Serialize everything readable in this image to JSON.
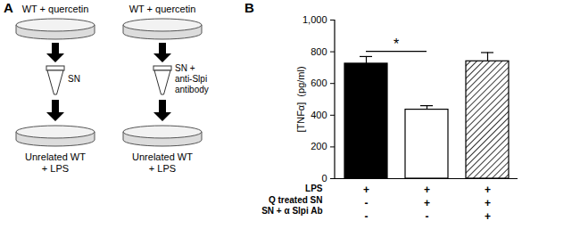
{
  "chart_data": {
    "type": "bar",
    "title": "B",
    "categories": [
      null,
      null,
      null
    ],
    "values": [
      725,
      435,
      740
    ],
    "errors": [
      45,
      25,
      55
    ],
    "colors": [
      "#000000",
      "#ffffff",
      "hatch"
    ],
    "ylabel": "[TNFα]  (pg/ml)",
    "ylim": [
      0,
      1000
    ],
    "yticks": [
      0,
      200,
      400,
      600,
      800,
      1000
    ],
    "x_table": [
      {
        "label": "LPS",
        "marks": [
          "+",
          "+",
          "+"
        ]
      },
      {
        "label": "Q treated SN",
        "marks": [
          "-",
          "+",
          "+"
        ]
      },
      {
        "label": "SN + α Slpi Ab",
        "marks": [
          "-",
          "-",
          "+"
        ]
      }
    ],
    "annotations": [
      {
        "text": "*",
        "between": [
          0,
          1
        ],
        "y": 800
      }
    ]
  },
  "diagram": {
    "label": "A",
    "columns": [
      {
        "top": "WT + quercetin",
        "middle": [
          "SN"
        ],
        "bottom": [
          "Unrelated WT",
          "+ LPS"
        ]
      },
      {
        "top": "WT + quercetin",
        "middle": [
          "SN +",
          "anti-Slpi",
          "antibody"
        ],
        "bottom": [
          "Unrelated WT",
          "+ LPS"
        ]
      }
    ]
  }
}
